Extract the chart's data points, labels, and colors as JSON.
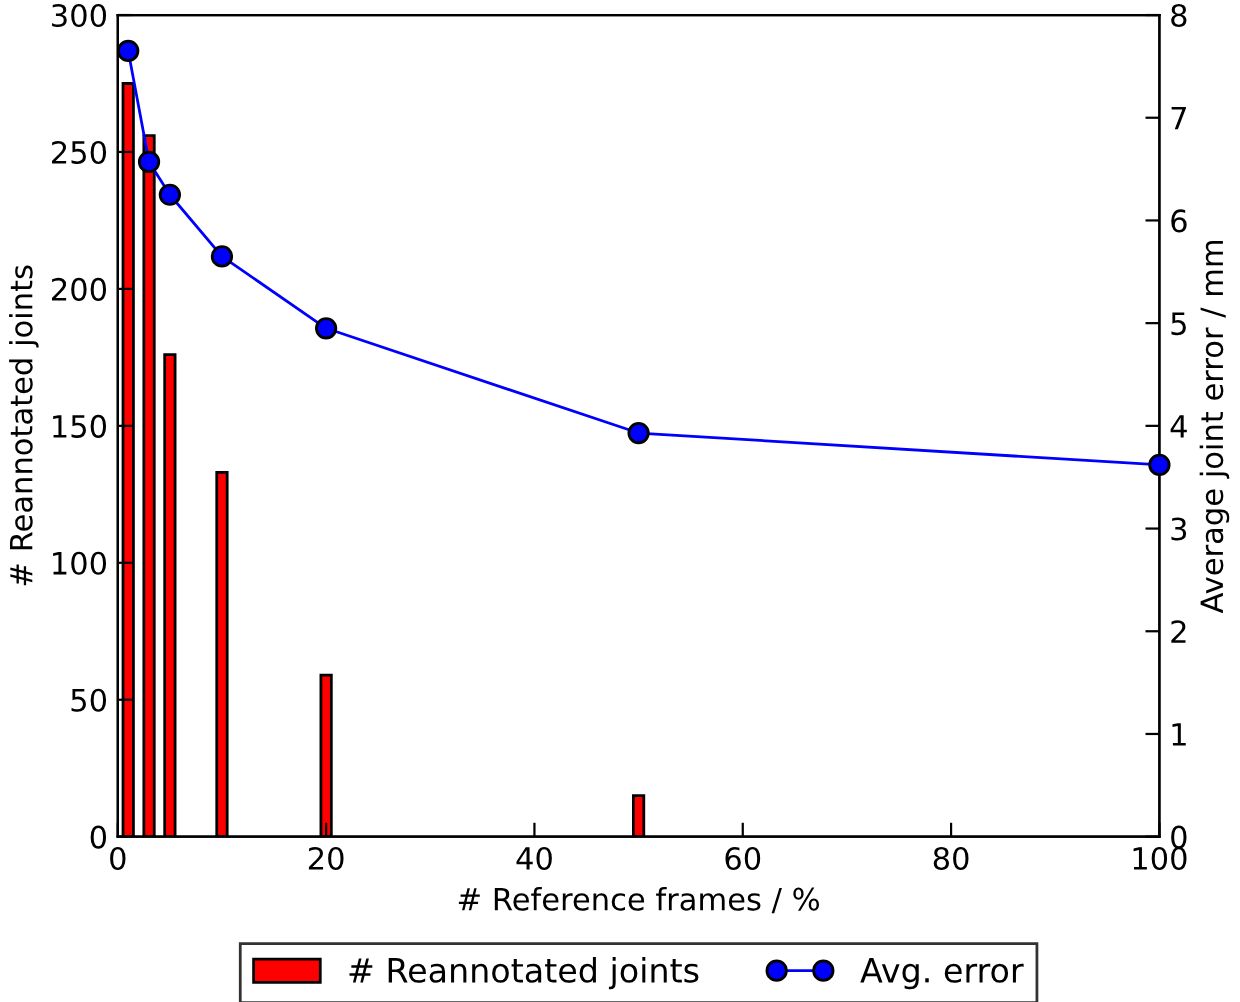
{
  "chart_data": {
    "type": "bar",
    "xlabel": "# Reference frames / %",
    "ylabel": "# Reannotated joints",
    "y2label": "Average joint error / mm",
    "xlim": [
      0,
      100
    ],
    "xticks": [
      0,
      20,
      40,
      60,
      80,
      100
    ],
    "ylim": [
      0,
      300
    ],
    "yticks": [
      0,
      50,
      100,
      150,
      200,
      250,
      300
    ],
    "y2lim": [
      0,
      8
    ],
    "y2ticks": [
      0,
      1,
      2,
      3,
      4,
      5,
      6,
      7,
      8
    ],
    "legend": "bottom",
    "grid": false,
    "series": [
      {
        "name": "# Reannotated joints",
        "color": "#ff0000",
        "x": [
          1,
          3,
          5,
          10,
          20,
          50
        ],
        "values": [
          275,
          256,
          176,
          133,
          59,
          15
        ]
      },
      {
        "name": "Avg. error",
        "type": "line",
        "axis": "y2",
        "color": "#0000ff",
        "marker": "circle",
        "line_style": "solid",
        "x": [
          1,
          3,
          5,
          10,
          20,
          50,
          100
        ],
        "values": [
          7.65,
          6.57,
          6.25,
          5.65,
          4.95,
          3.93,
          3.62
        ]
      }
    ]
  }
}
